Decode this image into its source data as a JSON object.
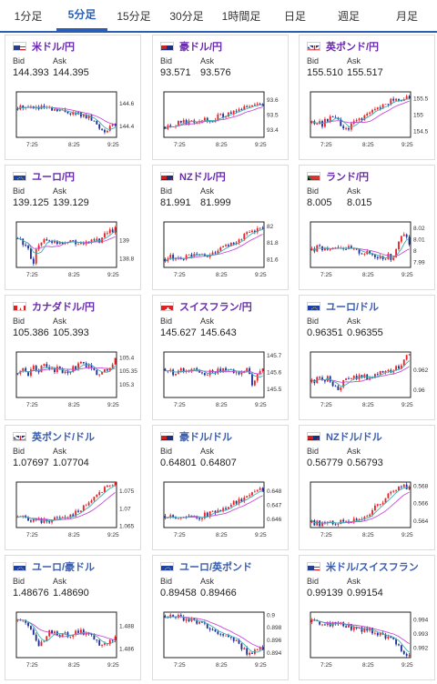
{
  "tabs": [
    {
      "label": "1分足",
      "active": false
    },
    {
      "label": "5分足",
      "active": true
    },
    {
      "label": "15分足",
      "active": false
    },
    {
      "label": "30分足",
      "active": false
    },
    {
      "label": "1時間足",
      "active": false
    },
    {
      "label": "日足",
      "active": false
    },
    {
      "label": "週足",
      "active": false
    },
    {
      "label": "月足",
      "active": false
    }
  ],
  "labels": {
    "bid": "Bid",
    "ask": "Ask"
  },
  "colors": {
    "accent": "#2a5fb5",
    "up": "#e8232a",
    "down": "#1f2f9a",
    "ma": "#c84ad6",
    "frame": "#333333"
  },
  "pairs": [
    {
      "name": "米ドル/円",
      "jpy": true,
      "flag": "us-flag",
      "bid": "144.393",
      "ask": "144.395",
      "chart_data": {
        "type": "candlestick",
        "x_ticks": [
          "7:25",
          "8:25",
          "9:25"
        ],
        "y_ticks": [
          "144.6",
          "144.4"
        ],
        "ylim": [
          144.3,
          144.7
        ],
        "trend": [
          144.55,
          144.58,
          144.56,
          144.57,
          144.55,
          144.56,
          144.55,
          144.53,
          144.54,
          144.52,
          144.53,
          144.5,
          144.51,
          144.48,
          144.47,
          144.43,
          144.38,
          144.36,
          144.4,
          144.39
        ]
      }
    },
    {
      "name": "豪ドル/円",
      "jpy": true,
      "flag": "au-flag",
      "bid": "93.571",
      "ask": "93.576",
      "chart_data": {
        "type": "candlestick",
        "x_ticks": [
          "7:25",
          "8:25",
          "9:25"
        ],
        "y_ticks": [
          "93.6",
          "93.5",
          "93.4"
        ],
        "ylim": [
          93.35,
          93.65
        ],
        "trend": [
          93.42,
          93.44,
          93.43,
          93.46,
          93.45,
          93.47,
          93.46,
          93.48,
          93.47,
          93.46,
          93.48,
          93.5,
          93.49,
          93.52,
          93.51,
          93.54,
          93.56,
          93.55,
          93.58,
          93.57
        ]
      }
    },
    {
      "name": "英ポンド/円",
      "jpy": true,
      "flag": "gb-flag",
      "bid": "155.510",
      "ask": "155.517",
      "chart_data": {
        "type": "candlestick",
        "x_ticks": [
          "7:25",
          "8:25",
          "9:25"
        ],
        "y_ticks": [
          "155.5",
          "155",
          "154.5"
        ],
        "ylim": [
          154.3,
          155.7
        ],
        "trend": [
          154.75,
          154.8,
          154.7,
          154.85,
          154.9,
          154.8,
          154.6,
          154.55,
          154.7,
          154.85,
          154.9,
          155.0,
          155.1,
          155.2,
          155.3,
          155.4,
          155.5,
          155.45,
          155.55,
          155.51
        ]
      }
    },
    {
      "name": "ユーロ/円",
      "jpy": true,
      "flag": "eu-flag",
      "bid": "139.125",
      "ask": "139.129",
      "chart_data": {
        "type": "candlestick",
        "x_ticks": [
          "7:25",
          "8:25",
          "9:25"
        ],
        "y_ticks": [
          "139",
          "138.8"
        ],
        "ylim": [
          138.7,
          139.2
        ],
        "trend": [
          139.02,
          138.98,
          138.9,
          138.75,
          138.95,
          139.0,
          138.98,
          139.0,
          138.97,
          138.99,
          139.0,
          138.97,
          138.96,
          138.98,
          138.97,
          138.99,
          139.0,
          139.05,
          139.1,
          139.12
        ]
      }
    },
    {
      "name": "NZドル/円",
      "jpy": true,
      "flag": "nz-flag",
      "bid": "81.991",
      "ask": "81.999",
      "chart_data": {
        "type": "candlestick",
        "x_ticks": [
          "7:25",
          "8:25",
          "9:25"
        ],
        "y_ticks": [
          "82",
          "81.8",
          "81.6"
        ],
        "ylim": [
          81.5,
          82.05
        ],
        "trend": [
          81.6,
          81.62,
          81.61,
          81.63,
          81.62,
          81.64,
          81.63,
          81.65,
          81.64,
          81.66,
          81.7,
          81.72,
          81.75,
          81.8,
          81.82,
          81.86,
          81.9,
          81.94,
          81.97,
          81.99
        ]
      }
    },
    {
      "name": "ランド/円",
      "jpy": true,
      "flag": "za-flag",
      "bid": "8.005",
      "ask": "8.015",
      "chart_data": {
        "type": "candlestick",
        "x_ticks": [
          "7:25",
          "8:25",
          "9:25"
        ],
        "y_ticks": [
          "8.02",
          "8.01",
          "8",
          "7.99"
        ],
        "ylim": [
          7.985,
          8.025
        ],
        "trend": [
          8.0,
          8.002,
          8.001,
          8.003,
          8.002,
          8.004,
          8.003,
          8.002,
          8.0,
          7.999,
          7.998,
          7.997,
          7.996,
          7.995,
          7.994,
          7.995,
          7.992,
          8.01,
          8.015,
          8.005
        ]
      }
    },
    {
      "name": "カナダドル/円",
      "jpy": true,
      "flag": "ca-flag",
      "bid": "105.386",
      "ask": "105.393",
      "chart_data": {
        "type": "candlestick",
        "x_ticks": [
          "7:25",
          "8:25",
          "9:25"
        ],
        "y_ticks": [
          "105.4",
          "105.35",
          "105.3"
        ],
        "ylim": [
          105.25,
          105.42
        ],
        "trend": [
          105.34,
          105.35,
          105.34,
          105.36,
          105.35,
          105.37,
          105.36,
          105.35,
          105.36,
          105.34,
          105.35,
          105.36,
          105.37,
          105.38,
          105.36,
          105.35,
          105.33,
          105.35,
          105.37,
          105.39
        ]
      }
    },
    {
      "name": "スイスフラン/円",
      "jpy": true,
      "flag": "ch-flag",
      "bid": "145.627",
      "ask": "145.643",
      "chart_data": {
        "type": "candlestick",
        "x_ticks": [
          "7:25",
          "8:25",
          "9:25"
        ],
        "y_ticks": [
          "145.7",
          "145.6",
          "145.5"
        ],
        "ylim": [
          145.45,
          145.72
        ],
        "trend": [
          145.62,
          145.6,
          145.58,
          145.61,
          145.6,
          145.62,
          145.61,
          145.6,
          145.59,
          145.61,
          145.6,
          145.62,
          145.61,
          145.6,
          145.59,
          145.61,
          145.62,
          145.52,
          145.58,
          145.63
        ]
      }
    },
    {
      "name": "ユーロ/ドル",
      "jpy": false,
      "flag": "eu-flag",
      "bid": "0.96351",
      "ask": "0.96355",
      "chart_data": {
        "type": "candlestick",
        "x_ticks": [
          "7:25",
          "8:25",
          "9:25"
        ],
        "y_ticks": [
          "0.962",
          "0.96"
        ],
        "ylim": [
          0.9592,
          0.9638
        ],
        "trend": [
          0.9608,
          0.961,
          0.9609,
          0.9612,
          0.9605,
          0.96,
          0.9607,
          0.961,
          0.9612,
          0.9613,
          0.9614,
          0.9612,
          0.9615,
          0.9616,
          0.9617,
          0.9618,
          0.9619,
          0.9624,
          0.963,
          0.9635
        ]
      }
    },
    {
      "name": "英ポンド/ドル",
      "jpy": false,
      "flag": "gb-flag",
      "bid": "1.07697",
      "ask": "1.07704",
      "chart_data": {
        "type": "candlestick",
        "x_ticks": [
          "7:25",
          "8:25",
          "9:25"
        ],
        "y_ticks": [
          "1.075",
          "1.07",
          "1.065"
        ],
        "ylim": [
          1.0645,
          1.0775
        ],
        "trend": [
          1.0675,
          1.0672,
          1.0668,
          1.0665,
          1.0663,
          1.0662,
          1.0665,
          1.0668,
          1.0672,
          1.0675,
          1.0678,
          1.0685,
          1.069,
          1.0705,
          1.072,
          1.0735,
          1.0748,
          1.076,
          1.0768,
          1.077
        ]
      }
    },
    {
      "name": "豪ドル/ドル",
      "jpy": false,
      "flag": "au-flag",
      "bid": "0.64801",
      "ask": "0.64807",
      "chart_data": {
        "type": "candlestick",
        "x_ticks": [
          "7:25",
          "8:25",
          "9:25"
        ],
        "y_ticks": [
          "0.648",
          "0.647",
          "0.646"
        ],
        "ylim": [
          0.6454,
          0.6486
        ],
        "trend": [
          0.6462,
          0.6461,
          0.6462,
          0.646,
          0.6461,
          0.6462,
          0.6461,
          0.6462,
          0.6463,
          0.6464,
          0.6466,
          0.6467,
          0.6469,
          0.6471,
          0.6472,
          0.6474,
          0.6477,
          0.648,
          0.6482,
          0.648
        ]
      }
    },
    {
      "name": "NZドル/ドル",
      "jpy": false,
      "flag": "nz-flag",
      "bid": "0.56779",
      "ask": "0.56793",
      "chart_data": {
        "type": "candlestick",
        "x_ticks": [
          "7:25",
          "8:25",
          "9:25"
        ],
        "y_ticks": [
          "0.568",
          "0.566",
          "0.564"
        ],
        "ylim": [
          0.5632,
          0.5684
        ],
        "trend": [
          0.5638,
          0.5637,
          0.5636,
          0.5637,
          0.5638,
          0.5637,
          0.5638,
          0.5639,
          0.564,
          0.5642,
          0.5644,
          0.5648,
          0.5652,
          0.5658,
          0.5664,
          0.567,
          0.5676,
          0.5677,
          0.5679,
          0.5678
        ]
      }
    },
    {
      "name": "ユーロ/豪ドル",
      "jpy": false,
      "flag": "eu-flag",
      "bid": "1.48676",
      "ask": "1.48690",
      "chart_data": {
        "type": "candlestick",
        "x_ticks": [
          "7:25",
          "8:25",
          "9:25"
        ],
        "y_ticks": [
          "1.488",
          "1.486"
        ],
        "ylim": [
          1.4852,
          1.4892
        ],
        "trend": [
          1.4885,
          1.4883,
          1.488,
          1.4872,
          1.486,
          1.4868,
          1.4874,
          1.4876,
          1.487,
          1.4873,
          1.4871,
          1.4874,
          1.4876,
          1.4873,
          1.4871,
          1.4868,
          1.4864,
          1.4865,
          1.4867,
          1.4868
        ]
      }
    },
    {
      "name": "ユーロ/英ポンド",
      "jpy": false,
      "flag": "eu-flag",
      "bid": "0.89458",
      "ask": "0.89466",
      "chart_data": {
        "type": "candlestick",
        "x_ticks": [
          "7:25",
          "8:25",
          "9:25"
        ],
        "y_ticks": [
          "0.9",
          "0.898",
          "0.896",
          "0.894"
        ],
        "ylim": [
          0.8932,
          0.9004
        ],
        "trend": [
          0.8998,
          0.8996,
          0.8997,
          0.8995,
          0.8994,
          0.8992,
          0.899,
          0.8986,
          0.8983,
          0.8978,
          0.8975,
          0.897,
          0.8965,
          0.8962,
          0.8958,
          0.8948,
          0.894,
          0.8942,
          0.8946,
          0.8946
        ]
      }
    },
    {
      "name": "米ドル/スイスフラン",
      "jpy": false,
      "flag": "us-flag",
      "bid": "0.99139",
      "ask": "0.99154",
      "chart_data": {
        "type": "candlestick",
        "x_ticks": [
          "7:25",
          "8:25",
          "9:25"
        ],
        "y_ticks": [
          "0.994",
          "0.993",
          "0.992"
        ],
        "ylim": [
          0.9913,
          0.9945
        ],
        "trend": [
          0.9938,
          0.9937,
          0.9938,
          0.9937,
          0.9936,
          0.9937,
          0.9936,
          0.9935,
          0.9934,
          0.9933,
          0.9932,
          0.9933,
          0.9931,
          0.993,
          0.9929,
          0.9927,
          0.9924,
          0.9921,
          0.9917,
          0.9914
        ]
      }
    }
  ]
}
